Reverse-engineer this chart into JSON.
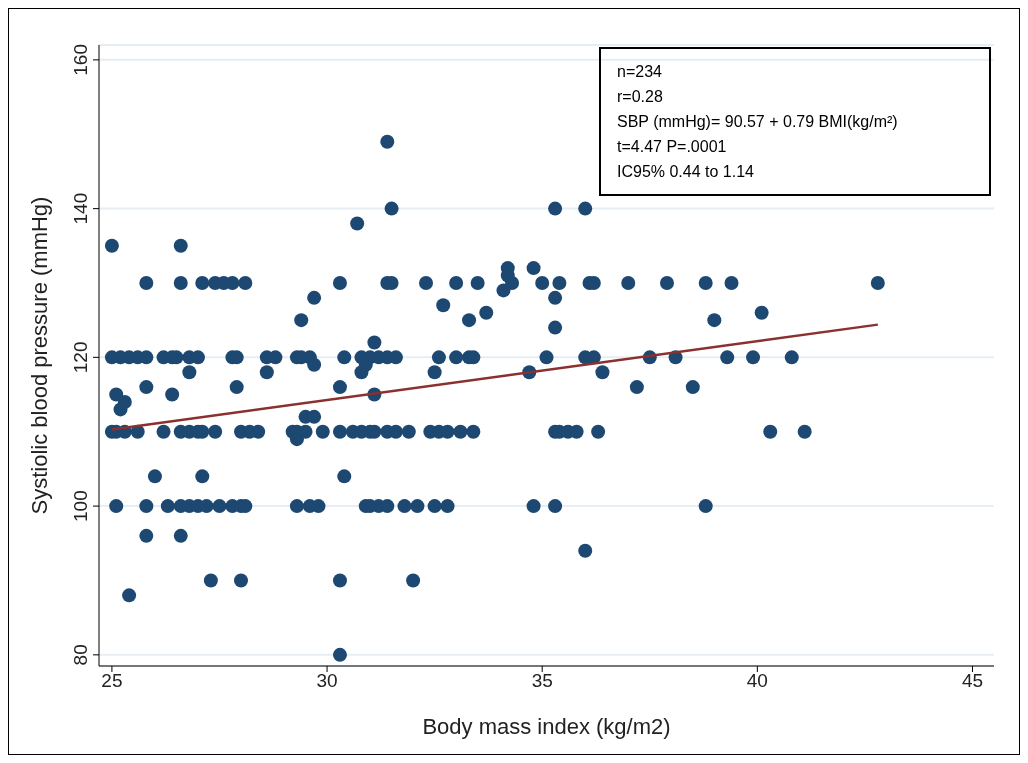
{
  "chart_data": {
    "type": "scatter",
    "xlabel": "Body mass index (kg/m2)",
    "ylabel": "Systiolic blood pressure (mmHg)",
    "xlim": [
      24.7,
      45.5
    ],
    "xticks": [
      25,
      30,
      35,
      40,
      45
    ],
    "ylim": [
      78.5,
      162
    ],
    "yticks": [
      80,
      100,
      120,
      140,
      160
    ],
    "grid": "y",
    "marker": "circle",
    "annotations": [
      "n=234",
      "r=0.28",
      "SBP (mmHg)= 90.57 + 0.79 BMI(kg/m²)",
      "t=4.47 P=.0001",
      "IC95% 0.44 to 1.14"
    ],
    "series": [
      {
        "color": "#1c4872",
        "x": [
          25.0,
          26.6,
          25.8,
          26.6,
          27.1,
          27.4,
          27.6,
          27.8,
          28.1,
          30.3,
          31.4,
          31.5,
          32.3,
          33.0,
          33.5,
          34.3,
          35.0,
          35.4,
          36.1,
          36.2,
          37.0,
          37.9,
          38.8,
          39.4,
          42.8,
          29.7,
          35.3,
          32.7,
          29.4,
          33.3,
          39.0,
          33.7,
          40.1,
          34.2,
          34.8,
          34.1,
          34.2,
          31.5,
          35.3,
          36.0,
          30.7,
          31.4,
          35.3,
          31.1,
          25.0,
          25.2,
          25.4,
          25.6,
          25.8,
          26.2,
          26.4,
          26.5,
          26.8,
          27.0,
          27.8,
          27.9,
          28.6,
          28.8,
          29.3,
          29.4,
          29.6,
          30.4,
          30.8,
          31.0,
          31.2,
          31.4,
          31.6,
          32.6,
          33.0,
          33.3,
          33.4,
          35.1,
          36.0,
          36.2,
          37.5,
          38.1,
          39.3,
          39.9,
          40.8,
          29.7,
          30.9,
          26.8,
          28.6,
          30.8,
          32.5,
          34.7,
          36.4,
          25.8,
          27.9,
          30.3,
          37.2,
          38.5,
          25.1,
          26.4,
          31.1,
          25.3,
          25.2,
          29.5,
          29.7,
          29.3,
          25.0,
          25.1,
          25.3,
          25.6,
          26.2,
          26.6,
          26.8,
          27.0,
          27.1,
          27.4,
          28.0,
          28.2,
          28.4,
          29.2,
          29.3,
          29.5,
          29.9,
          30.3,
          30.6,
          30.8,
          31.0,
          31.1,
          31.4,
          31.6,
          31.9,
          32.4,
          32.6,
          32.8,
          33.1,
          33.4,
          35.3,
          35.4,
          35.6,
          35.8,
          36.3,
          40.3,
          41.1,
          26.0,
          27.1,
          30.4,
          25.1,
          25.8,
          26.3,
          26.6,
          26.8,
          27.0,
          27.2,
          27.5,
          27.8,
          28.0,
          28.1,
          29.3,
          29.6,
          29.8,
          30.9,
          31.0,
          31.2,
          31.4,
          31.8,
          32.1,
          32.5,
          32.8,
          34.8,
          35.3,
          38.8,
          25.8,
          26.6,
          36.0,
          27.3,
          28.0,
          30.3,
          32.0,
          25.4,
          30.3
        ],
        "values": [
          135,
          135,
          130,
          130,
          130,
          130,
          130,
          130,
          130,
          130,
          130,
          130,
          130,
          130,
          130,
          130,
          130,
          130,
          130,
          130,
          130,
          130,
          130,
          130,
          130,
          128,
          128,
          127,
          125,
          125,
          125,
          126,
          126,
          132,
          132,
          129,
          131,
          140,
          140,
          140,
          138,
          149,
          124,
          122,
          120,
          120,
          120,
          120,
          120,
          120,
          120,
          120,
          120,
          120,
          120,
          120,
          120,
          120,
          120,
          120,
          120,
          120,
          120,
          120,
          120,
          120,
          120,
          120,
          120,
          120,
          120,
          120,
          120,
          120,
          120,
          120,
          120,
          120,
          120,
          119,
          119,
          118,
          118,
          118,
          118,
          118,
          118,
          116,
          116,
          116,
          116,
          116,
          115,
          115,
          115,
          114,
          113,
          112,
          112,
          109,
          110,
          110,
          110,
          110,
          110,
          110,
          110,
          110,
          110,
          110,
          110,
          110,
          110,
          110,
          110,
          110,
          110,
          110,
          110,
          110,
          110,
          110,
          110,
          110,
          110,
          110,
          110,
          110,
          110,
          110,
          110,
          110,
          110,
          110,
          110,
          110,
          110,
          104,
          104,
          104,
          100,
          100,
          100,
          100,
          100,
          100,
          100,
          100,
          100,
          100,
          100,
          100,
          100,
          100,
          100,
          100,
          100,
          100,
          100,
          100,
          100,
          100,
          100,
          100,
          100,
          96,
          96,
          94,
          90,
          90,
          90,
          90,
          88,
          80
        ]
      },
      {
        "type": "line",
        "color": "#8b2f2f",
        "marker": "none",
        "x": [
          25.0,
          42.8
        ],
        "values": [
          110.3,
          124.4
        ]
      }
    ]
  }
}
